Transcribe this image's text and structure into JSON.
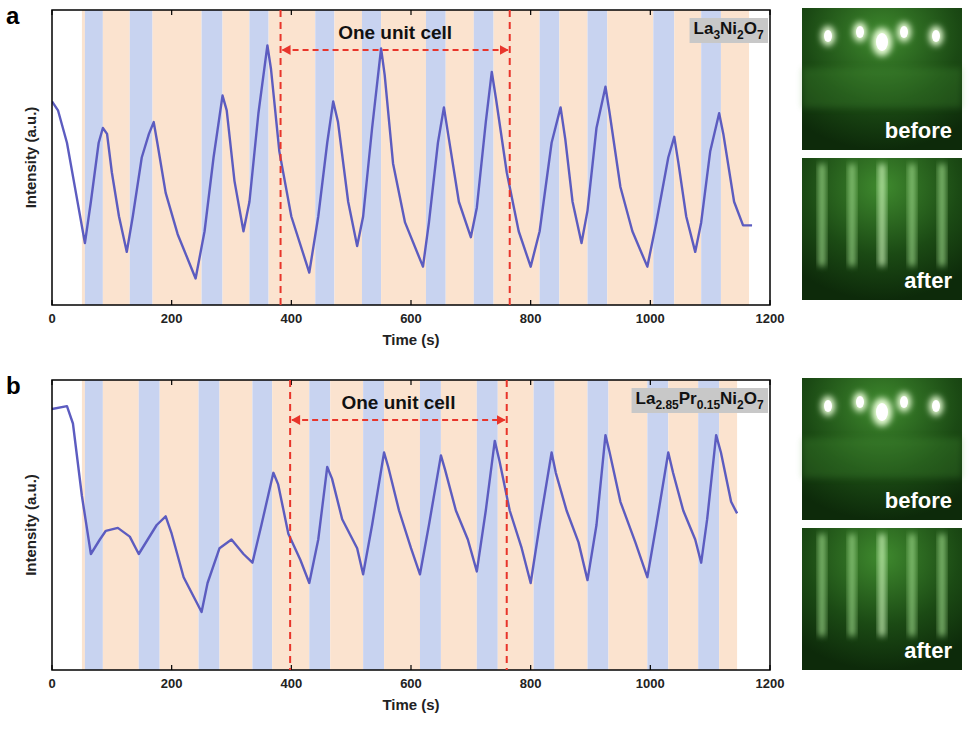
{
  "chart_data": [
    {
      "panel": "a",
      "type": "line",
      "xlabel": "Time (s)",
      "ylabel": "Intensity (a.u.)",
      "xlim": [
        0,
        1200
      ],
      "xticks": [
        0,
        200,
        400,
        600,
        800,
        1000,
        1200
      ],
      "ylim": [
        0,
        100
      ],
      "tick_labels": "x",
      "x": [
        0,
        10,
        25,
        40,
        55,
        65,
        78,
        85,
        92,
        100,
        112,
        125,
        135,
        150,
        162,
        170,
        176,
        190,
        210,
        240,
        255,
        270,
        285,
        292,
        305,
        320,
        330,
        345,
        360,
        366,
        380,
        400,
        430,
        445,
        460,
        470,
        478,
        495,
        510,
        520,
        535,
        550,
        556,
        570,
        590,
        620,
        630,
        645,
        655,
        662,
        680,
        700,
        710,
        725,
        735,
        742,
        760,
        780,
        800,
        815,
        835,
        850,
        858,
        870,
        885,
        895,
        910,
        925,
        932,
        950,
        970,
        995,
        1010,
        1030,
        1040,
        1047,
        1060,
        1075,
        1085,
        1100,
        1115,
        1122,
        1140,
        1155,
        1170
      ],
      "series": [
        {
          "name": "La3Ni2O7",
          "color": "#5c5cc0",
          "values": [
            69,
            66,
            55,
            38,
            21,
            35,
            55,
            60,
            58,
            45,
            30,
            18,
            30,
            50,
            58,
            62,
            55,
            38,
            24,
            9,
            25,
            50,
            71,
            66,
            42,
            25,
            35,
            65,
            88,
            80,
            52,
            30,
            11,
            30,
            55,
            69,
            62,
            35,
            20,
            30,
            60,
            87,
            78,
            48,
            28,
            13,
            28,
            55,
            67,
            58,
            35,
            23,
            33,
            62,
            79,
            70,
            45,
            25,
            13,
            25,
            55,
            67,
            56,
            35,
            21,
            32,
            60,
            74,
            65,
            40,
            25,
            13,
            28,
            50,
            57,
            48,
            30,
            18,
            28,
            52,
            65,
            58,
            35,
            27,
            27
          ]
        }
      ],
      "regions": [
        {
          "x0": 50,
          "x1": 55,
          "color": "#fbe3cf"
        },
        {
          "x0": 55,
          "x1": 85,
          "color": "#c8d3f0"
        },
        {
          "x0": 85,
          "x1": 130,
          "color": "#fbe3cf"
        },
        {
          "x0": 130,
          "x1": 168,
          "color": "#c8d3f0"
        },
        {
          "x0": 168,
          "x1": 250,
          "color": "#fbe3cf"
        },
        {
          "x0": 250,
          "x1": 285,
          "color": "#c8d3f0"
        },
        {
          "x0": 285,
          "x1": 330,
          "color": "#fbe3cf"
        },
        {
          "x0": 330,
          "x1": 362,
          "color": "#c8d3f0"
        },
        {
          "x0": 362,
          "x1": 440,
          "color": "#fbe3cf"
        },
        {
          "x0": 440,
          "x1": 472,
          "color": "#c8d3f0"
        },
        {
          "x0": 472,
          "x1": 518,
          "color": "#fbe3cf"
        },
        {
          "x0": 518,
          "x1": 550,
          "color": "#c8d3f0"
        },
        {
          "x0": 550,
          "x1": 625,
          "color": "#fbe3cf"
        },
        {
          "x0": 625,
          "x1": 658,
          "color": "#c8d3f0"
        },
        {
          "x0": 658,
          "x1": 705,
          "color": "#fbe3cf"
        },
        {
          "x0": 705,
          "x1": 738,
          "color": "#c8d3f0"
        },
        {
          "x0": 738,
          "x1": 815,
          "color": "#fbe3cf"
        },
        {
          "x0": 815,
          "x1": 848,
          "color": "#c8d3f0"
        },
        {
          "x0": 848,
          "x1": 895,
          "color": "#fbe3cf"
        },
        {
          "x0": 895,
          "x1": 928,
          "color": "#c8d3f0"
        },
        {
          "x0": 928,
          "x1": 1005,
          "color": "#fbe3cf"
        },
        {
          "x0": 1005,
          "x1": 1040,
          "color": "#c8d3f0"
        },
        {
          "x0": 1040,
          "x1": 1085,
          "color": "#fbe3cf"
        },
        {
          "x0": 1085,
          "x1": 1118,
          "color": "#c8d3f0"
        },
        {
          "x0": 1118,
          "x1": 1165,
          "color": "#fbe3cf"
        }
      ],
      "annotations": [
        {
          "text": "One unit cell",
          "x0": 382,
          "x1": 765
        }
      ],
      "images": [
        "before",
        "after"
      ]
    },
    {
      "panel": "b",
      "type": "line",
      "xlabel": "Time (s)",
      "ylabel": "Intensity (a.u.)",
      "xlim": [
        0,
        1200
      ],
      "xticks": [
        0,
        200,
        400,
        600,
        800,
        1000,
        1200
      ],
      "ylim": [
        0,
        100
      ],
      "tick_labels": "x",
      "x": [
        0,
        25,
        35,
        50,
        65,
        80,
        90,
        110,
        130,
        145,
        160,
        175,
        190,
        200,
        220,
        250,
        260,
        280,
        300,
        320,
        335,
        350,
        370,
        378,
        395,
        415,
        430,
        445,
        460,
        468,
        485,
        510,
        520,
        535,
        555,
        562,
        580,
        600,
        615,
        630,
        650,
        657,
        675,
        695,
        710,
        725,
        740,
        748,
        765,
        785,
        800,
        815,
        835,
        842,
        860,
        880,
        895,
        910,
        925,
        932,
        950,
        975,
        995,
        1010,
        1030,
        1038,
        1055,
        1075,
        1085,
        1095,
        1110,
        1118,
        1135,
        1145
      ],
      "series": [
        {
          "name": "La2.85Pr0.15Ni2O7",
          "color": "#5c5cc0",
          "values": [
            90,
            91,
            85,
            60,
            40,
            45,
            48,
            49,
            46,
            40,
            45,
            50,
            53,
            47,
            32,
            20,
            30,
            42,
            45,
            40,
            37,
            50,
            68,
            64,
            47,
            38,
            30,
            45,
            70,
            66,
            52,
            42,
            33,
            50,
            75,
            70,
            55,
            42,
            33,
            50,
            74,
            69,
            55,
            45,
            34,
            55,
            79,
            72,
            55,
            42,
            30,
            50,
            75,
            68,
            55,
            44,
            31,
            50,
            81,
            75,
            58,
            44,
            32,
            50,
            75,
            68,
            55,
            45,
            37,
            52,
            81,
            75,
            58,
            54
          ]
        }
      ],
      "regions": [
        {
          "x0": 50,
          "x1": 55,
          "color": "#fbe3cf"
        },
        {
          "x0": 55,
          "x1": 85,
          "color": "#c8d3f0"
        },
        {
          "x0": 85,
          "x1": 145,
          "color": "#fbe3cf"
        },
        {
          "x0": 145,
          "x1": 180,
          "color": "#c8d3f0"
        },
        {
          "x0": 180,
          "x1": 245,
          "color": "#fbe3cf"
        },
        {
          "x0": 245,
          "x1": 280,
          "color": "#c8d3f0"
        },
        {
          "x0": 280,
          "x1": 335,
          "color": "#fbe3cf"
        },
        {
          "x0": 335,
          "x1": 368,
          "color": "#c8d3f0"
        },
        {
          "x0": 368,
          "x1": 430,
          "color": "#fbe3cf"
        },
        {
          "x0": 430,
          "x1": 465,
          "color": "#c8d3f0"
        },
        {
          "x0": 465,
          "x1": 520,
          "color": "#fbe3cf"
        },
        {
          "x0": 520,
          "x1": 555,
          "color": "#c8d3f0"
        },
        {
          "x0": 555,
          "x1": 615,
          "color": "#fbe3cf"
        },
        {
          "x0": 615,
          "x1": 650,
          "color": "#c8d3f0"
        },
        {
          "x0": 650,
          "x1": 710,
          "color": "#fbe3cf"
        },
        {
          "x0": 710,
          "x1": 745,
          "color": "#c8d3f0"
        },
        {
          "x0": 745,
          "x1": 805,
          "color": "#fbe3cf"
        },
        {
          "x0": 805,
          "x1": 840,
          "color": "#c8d3f0"
        },
        {
          "x0": 840,
          "x1": 895,
          "color": "#fbe3cf"
        },
        {
          "x0": 895,
          "x1": 930,
          "color": "#c8d3f0"
        },
        {
          "x0": 930,
          "x1": 995,
          "color": "#fbe3cf"
        },
        {
          "x0": 995,
          "x1": 1030,
          "color": "#c8d3f0"
        },
        {
          "x0": 1030,
          "x1": 1080,
          "color": "#fbe3cf"
        },
        {
          "x0": 1080,
          "x1": 1115,
          "color": "#c8d3f0"
        },
        {
          "x0": 1115,
          "x1": 1145,
          "color": "#fbe3cf"
        }
      ],
      "annotations": [
        {
          "text": "One unit cell",
          "x0": 398,
          "x1": 760
        }
      ],
      "images": [
        "before",
        "after"
      ]
    }
  ]
}
